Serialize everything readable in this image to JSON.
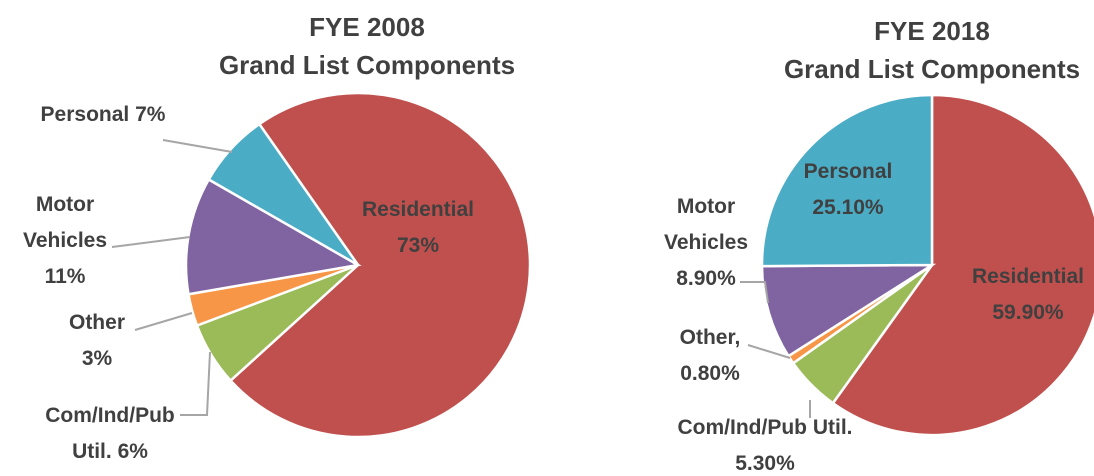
{
  "chart_data": [
    {
      "type": "pie",
      "title": "FYE 2008",
      "subtitle": "Grand List Components",
      "categories": [
        "Residential",
        "Com/Ind/Pub Util.",
        "Other",
        "Motor Vehicles",
        "Personal"
      ],
      "values": [
        73,
        6,
        3,
        11,
        7
      ],
      "value_labels": [
        "73%",
        "6%",
        "3%",
        "11%",
        "7%"
      ],
      "colors": [
        "#c0504d",
        "#9bbb59",
        "#f79646",
        "#8064a2",
        "#4bacc6"
      ]
    },
    {
      "type": "pie",
      "title": "FYE 2018",
      "subtitle": "Grand List Components",
      "categories": [
        "Residential",
        "Com/Ind/Pub Util.",
        "Other,",
        "Motor Vehicles",
        "Personal"
      ],
      "values": [
        59.9,
        5.3,
        0.8,
        8.9,
        25.1
      ],
      "value_labels": [
        "59.90%",
        "5.30%",
        "0.80%",
        "8.90%",
        "25.10%"
      ],
      "colors": [
        "#c0504d",
        "#9bbb59",
        "#f79646",
        "#8064a2",
        "#4bacc6"
      ]
    }
  ]
}
